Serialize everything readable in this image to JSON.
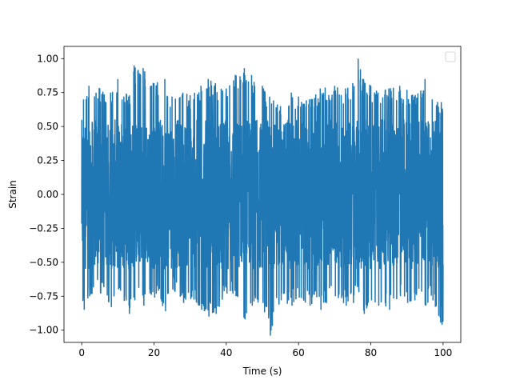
{
  "chart_data": {
    "type": "line",
    "title": "",
    "xlabel": "Time (s)",
    "ylabel": "Strain",
    "xlim": [
      -4.9,
      104.9
    ],
    "ylim": [
      -1.09,
      1.09
    ],
    "xticks": [
      0,
      20,
      40,
      60,
      80,
      100
    ],
    "xtick_labels": [
      "0",
      "20",
      "40",
      "60",
      "80",
      "100"
    ],
    "yticks": [
      -1.0,
      -0.75,
      -0.5,
      -0.25,
      0.0,
      0.25,
      0.5,
      0.75,
      1.0
    ],
    "ytick_labels": [
      "−1.00",
      "−0.75",
      "−0.50",
      "−0.25",
      "0.00",
      "0.25",
      "0.50",
      "0.75",
      "1.00"
    ],
    "grid": false,
    "legend": {
      "position": "top-right",
      "entries": []
    },
    "series": [
      {
        "color": "#1f77b4",
        "description_of_signal": "dense noise-like oscillation between about -1 and 1, sampled from 0 to 100 s",
        "x_range": [
          0,
          100
        ],
        "envelope_peaks": [
          [
            0.5,
            0.7,
            -0.85
          ],
          [
            2,
            0.8,
            -0.75
          ],
          [
            5,
            0.78,
            -0.72
          ],
          [
            8,
            0.75,
            -0.83
          ],
          [
            10,
            0.85,
            -0.7
          ],
          [
            13,
            0.72,
            -0.88
          ],
          [
            14.5,
            0.95,
            -0.78
          ],
          [
            17,
            0.93,
            -0.82
          ],
          [
            20,
            0.82,
            -0.76
          ],
          [
            23,
            0.85,
            -0.86
          ],
          [
            25,
            0.72,
            -0.7
          ],
          [
            28,
            0.75,
            -0.8
          ],
          [
            30,
            0.73,
            -0.77
          ],
          [
            33,
            0.8,
            -0.85
          ],
          [
            35,
            0.85,
            -0.9
          ],
          [
            37,
            0.82,
            -0.88
          ],
          [
            40,
            0.78,
            -0.73
          ],
          [
            42.5,
            0.88,
            -0.75
          ],
          [
            45,
            0.93,
            -0.92
          ],
          [
            47,
            0.88,
            -0.82
          ],
          [
            50,
            0.8,
            -0.8
          ],
          [
            52,
            0.72,
            -1.04
          ],
          [
            55,
            0.65,
            -0.78
          ],
          [
            58,
            0.75,
            -0.82
          ],
          [
            60,
            0.72,
            -0.76
          ],
          [
            63,
            0.7,
            -0.82
          ],
          [
            66,
            0.78,
            -0.85
          ],
          [
            70,
            0.8,
            -0.75
          ],
          [
            73,
            0.78,
            -0.82
          ],
          [
            75,
            0.82,
            -0.8
          ],
          [
            76.5,
            1.0,
            -0.72
          ],
          [
            78,
            0.85,
            -0.88
          ],
          [
            80,
            0.8,
            -0.78
          ],
          [
            82,
            0.75,
            -0.82
          ],
          [
            85,
            0.78,
            -0.85
          ],
          [
            88,
            0.8,
            -0.75
          ],
          [
            90,
            0.77,
            -0.8
          ],
          [
            92,
            0.72,
            -0.78
          ],
          [
            95,
            0.85,
            -0.82
          ],
          [
            97,
            0.7,
            -0.78
          ],
          [
            99.5,
            0.68,
            -0.96
          ]
        ]
      }
    ]
  }
}
